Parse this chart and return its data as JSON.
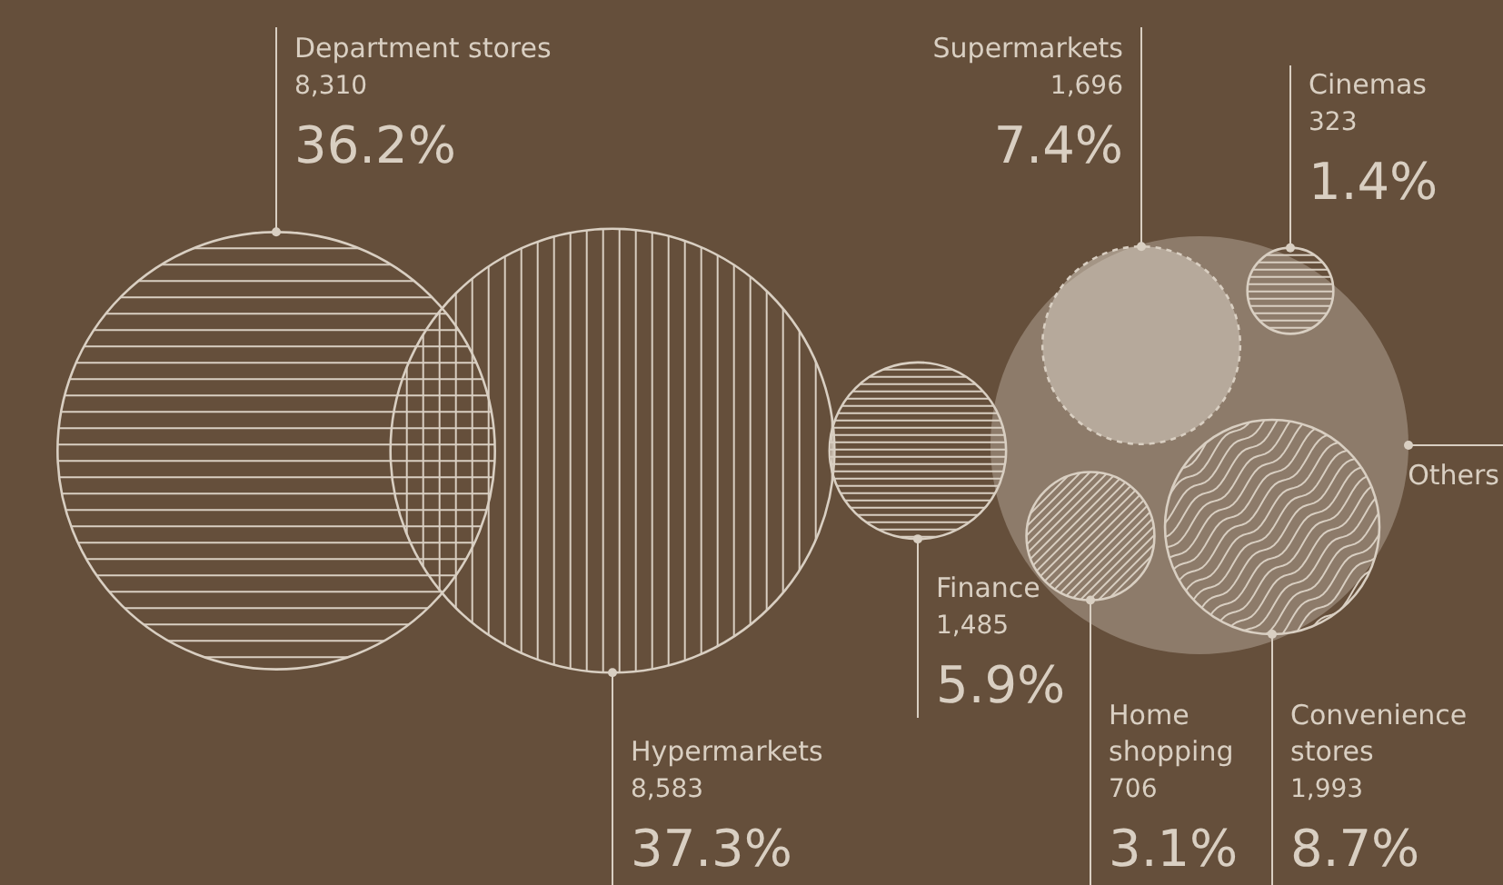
{
  "chart_data": {
    "type": "other",
    "categories": [
      "Department stores",
      "Hypermarkets",
      "Finance",
      "Supermarkets",
      "Cinemas",
      "Home shopping",
      "Convenience stores",
      "Others"
    ],
    "values": [
      36.2,
      37.3,
      5.9,
      7.4,
      1.4,
      3.1,
      8.7,
      null
    ],
    "value_labels": [
      "36.2%",
      "37.3%",
      "5.9%",
      "7.4%",
      "1.4%",
      "3.1%",
      "8.7%",
      null
    ],
    "annotations": [
      "8,310",
      "8,583",
      "1,485",
      "1,696",
      "323",
      "706",
      "1,993"
    ],
    "color": "#d9cfc2"
  }
}
